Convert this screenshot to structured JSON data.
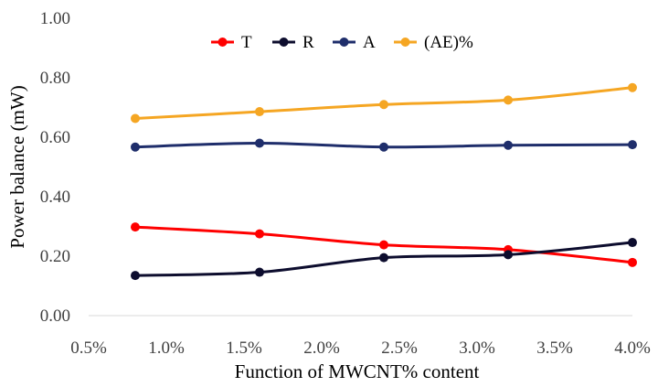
{
  "chart_data": {
    "type": "line",
    "x": [
      0.008,
      0.016,
      0.024,
      0.032,
      0.04
    ],
    "xlabel": "Function of MWCNT% content",
    "ylabel": "Power balance (mW)",
    "xlim": [
      0.005,
      0.04
    ],
    "ylim": [
      0,
      1
    ],
    "xticks": [
      "0.5%",
      "1.0%",
      "1.5%",
      "2.0%",
      "2.5%",
      "3.0%",
      "3.5%",
      "4.0%"
    ],
    "yticks": [
      "0.00",
      "0.20",
      "0.40",
      "0.60",
      "0.80",
      "1.00"
    ],
    "grid": false,
    "legend_position": "top",
    "series": [
      {
        "name": "T",
        "color": "#ff0000",
        "values": [
          0.298,
          0.275,
          0.238,
          0.222,
          0.179
        ]
      },
      {
        "name": "R",
        "color": "#0d0d2e",
        "values": [
          0.135,
          0.146,
          0.195,
          0.205,
          0.246
        ]
      },
      {
        "name": "A",
        "color": "#1f2e6b",
        "values": [
          0.567,
          0.58,
          0.567,
          0.573,
          0.575
        ]
      },
      {
        "name": "(AE)%",
        "color": "#f5a623",
        "values": [
          0.663,
          0.686,
          0.71,
          0.725,
          0.767
        ]
      }
    ]
  }
}
